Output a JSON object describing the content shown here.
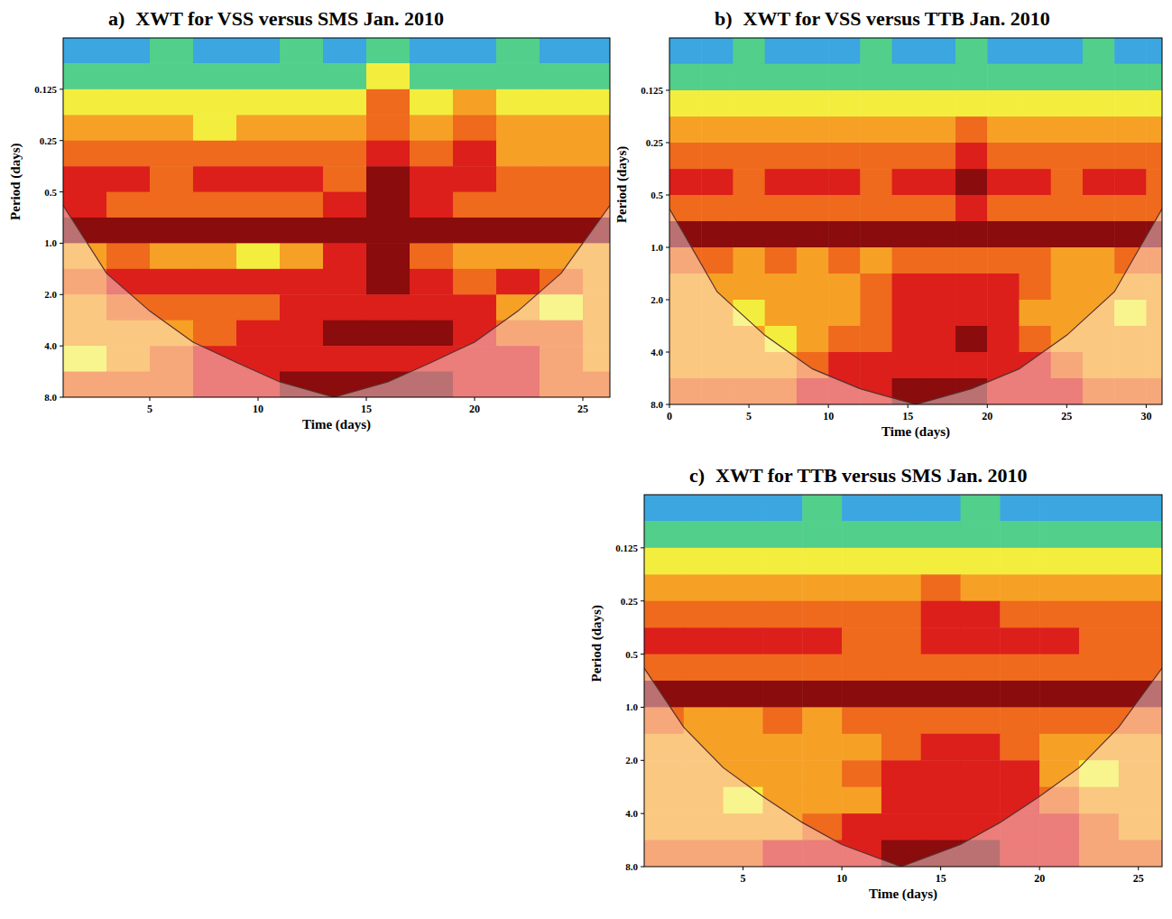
{
  "chart_data": [
    {
      "type": "heatmap",
      "panel": "a)",
      "title": "XWT for VSS versus SMS Jan. 2010",
      "x_label": "Time (days)",
      "y_label": "Period (days)",
      "log": "y",
      "xlim": [
        1,
        26.25
      ],
      "ylim": [
        0.0625,
        8
      ],
      "xticks": [
        5,
        10,
        15,
        20,
        25
      ],
      "yticks": [
        0.125,
        0.25,
        0.5,
        {
          "value": 1,
          "label": "1.0"
        },
        {
          "value": 2,
          "label": "2.0"
        },
        {
          "value": 4,
          "label": "4.0"
        },
        {
          "value": 8,
          "label": "8.0"
        }
      ],
      "zlim": [
        0,
        7
      ],
      "x_edges": [
        1,
        3,
        5,
        7,
        9,
        11,
        13,
        15,
        17,
        19,
        21,
        23,
        25,
        26.25
      ],
      "y_edges": [
        0.0625,
        0.088,
        0.125,
        0.177,
        0.25,
        0.354,
        0.5,
        0.707,
        1,
        1.414,
        2,
        2.828,
        4,
        5.657,
        8
      ],
      "cells": [
        [
          1,
          1,
          2,
          1,
          1,
          2,
          1,
          2,
          1,
          1,
          2,
          1,
          1
        ],
        [
          2,
          2,
          2,
          2,
          2,
          2,
          2,
          3,
          2,
          2,
          2,
          2,
          2
        ],
        [
          3,
          3,
          3,
          3,
          3,
          3,
          3,
          5,
          3,
          4,
          3,
          3,
          3
        ],
        [
          4,
          4,
          4,
          3,
          4,
          4,
          4,
          5,
          4,
          5,
          4,
          4,
          4
        ],
        [
          5,
          5,
          5,
          5,
          5,
          5,
          5,
          6,
          5,
          6,
          4,
          4,
          4
        ],
        [
          6,
          6,
          5,
          6,
          6,
          6,
          5,
          7,
          6,
          6,
          5,
          5,
          5
        ],
        [
          6,
          5,
          5,
          5,
          5,
          5,
          6,
          7,
          6,
          5,
          5,
          5,
          5
        ],
        [
          7,
          7,
          7,
          7,
          7,
          7,
          7,
          7,
          7,
          7,
          7,
          7,
          7
        ],
        [
          4,
          5,
          4,
          4,
          3,
          4,
          6,
          7,
          5,
          4,
          4,
          4,
          4
        ],
        [
          5,
          6,
          6,
          6,
          6,
          6,
          6,
          7,
          6,
          5,
          6,
          5,
          4
        ],
        [
          4,
          5,
          5,
          5,
          5,
          6,
          6,
          6,
          6,
          6,
          4,
          3,
          4
        ],
        [
          4,
          4,
          4,
          5,
          6,
          6,
          7,
          7,
          7,
          6,
          5,
          5,
          4
        ],
        [
          3,
          4,
          5,
          6,
          6,
          6,
          6,
          6,
          6,
          6,
          6,
          5,
          4
        ],
        [
          5,
          5,
          5,
          6,
          6,
          7,
          7,
          7,
          7,
          6,
          6,
          5,
          5
        ]
      ],
      "coi_x": [
        1,
        3,
        5,
        7,
        9,
        11,
        13.5,
        16,
        18,
        20,
        22,
        24,
        26.25
      ],
      "coi": [
        0.6,
        1.5,
        2.5,
        3.8,
        5,
        6.5,
        8,
        6.5,
        5,
        3.8,
        2.5,
        1.5,
        0.6
      ]
    },
    {
      "type": "heatmap",
      "panel": "b)",
      "title": "XWT for VSS versus TTB Jan. 2010",
      "x_label": "Time (days)",
      "y_label": "Period (days)",
      "log": "y",
      "xlim": [
        0,
        31
      ],
      "ylim": [
        0.0625,
        8
      ],
      "xticks": [
        0,
        5,
        10,
        15,
        20,
        25,
        30
      ],
      "yticks": [
        0.125,
        0.25,
        0.5,
        {
          "value": 1,
          "label": "1.0"
        },
        {
          "value": 2,
          "label": "2.0"
        },
        {
          "value": 4,
          "label": "4.0"
        },
        {
          "value": 8,
          "label": "8.0"
        }
      ],
      "zlim": [
        0,
        7
      ],
      "x_edges": [
        0,
        2,
        4,
        6,
        8,
        10,
        12,
        14,
        16,
        18,
        20,
        22,
        24,
        26,
        28,
        30,
        31
      ],
      "y_edges": [
        0.0625,
        0.088,
        0.125,
        0.177,
        0.25,
        0.354,
        0.5,
        0.707,
        1,
        1.414,
        2,
        2.828,
        4,
        5.657,
        8
      ],
      "cells": [
        [
          1,
          1,
          2,
          1,
          1,
          1,
          2,
          1,
          1,
          2,
          1,
          1,
          1,
          2,
          1,
          1
        ],
        [
          2,
          2,
          2,
          2,
          2,
          2,
          2,
          2,
          2,
          2,
          2,
          2,
          2,
          2,
          2,
          2
        ],
        [
          3,
          3,
          3,
          3,
          3,
          3,
          3,
          3,
          3,
          3,
          3,
          3,
          3,
          3,
          3,
          3
        ],
        [
          4,
          4,
          4,
          4,
          4,
          4,
          4,
          4,
          4,
          5,
          4,
          4,
          4,
          4,
          4,
          4
        ],
        [
          5,
          5,
          5,
          5,
          5,
          5,
          5,
          5,
          5,
          6,
          5,
          5,
          5,
          5,
          5,
          5
        ],
        [
          6,
          6,
          5,
          6,
          6,
          6,
          5,
          6,
          6,
          7,
          6,
          6,
          5,
          6,
          6,
          5
        ],
        [
          5,
          5,
          5,
          5,
          5,
          5,
          5,
          5,
          5,
          6,
          5,
          5,
          5,
          5,
          5,
          5
        ],
        [
          7,
          7,
          7,
          7,
          7,
          7,
          7,
          7,
          7,
          7,
          7,
          7,
          7,
          7,
          7,
          7
        ],
        [
          5,
          5,
          4,
          5,
          4,
          5,
          4,
          5,
          5,
          5,
          5,
          5,
          4,
          4,
          5,
          5
        ],
        [
          4,
          4,
          4,
          4,
          4,
          4,
          5,
          6,
          6,
          6,
          6,
          5,
          4,
          4,
          4,
          4
        ],
        [
          4,
          4,
          3,
          4,
          4,
          4,
          5,
          6,
          6,
          6,
          6,
          4,
          4,
          4,
          3,
          4
        ],
        [
          4,
          4,
          4,
          3,
          4,
          5,
          5,
          6,
          6,
          7,
          6,
          5,
          4,
          4,
          4,
          4
        ],
        [
          4,
          4,
          4,
          4,
          5,
          6,
          6,
          6,
          6,
          6,
          6,
          6,
          5,
          4,
          4,
          4
        ],
        [
          5,
          5,
          5,
          5,
          6,
          6,
          6,
          7,
          7,
          7,
          6,
          6,
          6,
          5,
          5,
          5
        ]
      ],
      "coi_x": [
        0,
        3,
        6,
        9,
        12,
        15.5,
        19,
        22,
        25,
        28,
        31
      ],
      "coi": [
        0.6,
        1.8,
        3.2,
        5,
        6.5,
        8,
        6.5,
        5,
        3.2,
        1.8,
        0.6
      ]
    },
    {
      "type": "heatmap",
      "panel": "c)",
      "title": "XWT for TTB versus SMS Jan. 2010",
      "x_label": "Time (days)",
      "y_label": "Period (days)",
      "log": "y",
      "xlim": [
        0,
        26.2
      ],
      "ylim": [
        0.0625,
        8
      ],
      "xticks": [
        5,
        10,
        15,
        20,
        25
      ],
      "yticks": [
        0.125,
        0.25,
        0.5,
        {
          "value": 1,
          "label": "1.0"
        },
        {
          "value": 2,
          "label": "2.0"
        },
        {
          "value": 4,
          "label": "4.0"
        },
        {
          "value": 8,
          "label": "8.0"
        }
      ],
      "zlim": [
        0,
        7
      ],
      "x_edges": [
        0,
        2,
        4,
        6,
        8,
        10,
        12,
        14,
        16,
        18,
        20,
        22,
        24,
        26.2
      ],
      "y_edges": [
        0.0625,
        0.088,
        0.125,
        0.177,
        0.25,
        0.354,
        0.5,
        0.707,
        1,
        1.414,
        2,
        2.828,
        4,
        5.657,
        8
      ],
      "cells": [
        [
          1,
          1,
          1,
          1,
          2,
          1,
          1,
          1,
          2,
          1,
          1,
          1,
          1
        ],
        [
          2,
          2,
          2,
          2,
          2,
          2,
          2,
          2,
          2,
          2,
          2,
          2,
          2
        ],
        [
          3,
          3,
          3,
          3,
          3,
          3,
          3,
          3,
          3,
          3,
          3,
          3,
          3
        ],
        [
          4,
          4,
          4,
          4,
          4,
          4,
          4,
          5,
          4,
          4,
          4,
          4,
          4
        ],
        [
          5,
          5,
          5,
          5,
          5,
          5,
          5,
          6,
          6,
          5,
          5,
          5,
          5
        ],
        [
          6,
          6,
          6,
          6,
          6,
          5,
          5,
          6,
          6,
          6,
          6,
          5,
          5
        ],
        [
          5,
          5,
          5,
          5,
          5,
          5,
          5,
          5,
          5,
          5,
          5,
          5,
          5
        ],
        [
          7,
          7,
          7,
          7,
          7,
          7,
          7,
          7,
          7,
          7,
          7,
          7,
          7
        ],
        [
          5,
          4,
          4,
          5,
          4,
          5,
          5,
          5,
          5,
          5,
          5,
          5,
          5
        ],
        [
          4,
          4,
          4,
          4,
          4,
          4,
          5,
          6,
          6,
          5,
          4,
          4,
          4
        ],
        [
          4,
          4,
          4,
          4,
          4,
          5,
          6,
          6,
          6,
          6,
          4,
          3,
          4
        ],
        [
          4,
          4,
          3,
          4,
          4,
          4,
          6,
          6,
          6,
          6,
          5,
          4,
          4
        ],
        [
          4,
          4,
          4,
          4,
          5,
          6,
          6,
          6,
          6,
          6,
          6,
          5,
          4
        ],
        [
          5,
          5,
          5,
          6,
          6,
          6,
          7,
          7,
          7,
          6,
          6,
          5,
          5
        ]
      ],
      "coi_x": [
        0,
        2,
        4,
        6,
        8,
        10,
        13,
        16,
        18,
        20,
        22,
        24,
        26.2
      ],
      "coi": [
        0.6,
        1.3,
        2.2,
        3.2,
        4.5,
        6,
        8,
        6,
        4.5,
        3.2,
        2.2,
        1.3,
        0.6
      ]
    }
  ]
}
